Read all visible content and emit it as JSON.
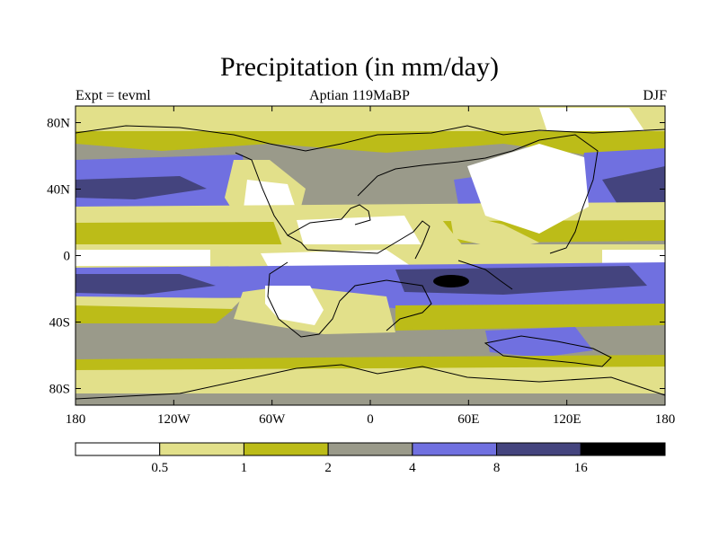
{
  "title": "Precipitation (in mm/day)",
  "subtitle_left": "Expt = tevml",
  "subtitle_center": "Aptian  119MaBP",
  "subtitle_right": "DJF",
  "colors": {
    "level_0": "#ffffff",
    "level_1": "#e2e08a",
    "level_2": "#bcbc18",
    "level_3": "#9a9a8a",
    "level_4": "#7070e0",
    "level_5": "#44447e",
    "level_6": "#000000"
  },
  "chart_data": {
    "type": "map-contour",
    "variable": "Precipitation",
    "units": "mm/day",
    "season": "DJF",
    "lon_range": [
      -180,
      180
    ],
    "lat_range": [
      -90,
      90
    ],
    "x_ticks": [
      "180",
      "120W",
      "60W",
      "0",
      "60E",
      "120E",
      "180"
    ],
    "x_tick_values": [
      -180,
      -120,
      -60,
      0,
      60,
      120,
      180
    ],
    "y_ticks": [
      "80N",
      "40N",
      "0",
      "40S",
      "80S"
    ],
    "y_tick_values": [
      80,
      40,
      0,
      -40,
      -80
    ],
    "legend_levels": [
      "0.5",
      "1",
      "2",
      "4",
      "8",
      "16"
    ],
    "legend_colors": [
      "#ffffff",
      "#e2e08a",
      "#bcbc18",
      "#9a9a8a",
      "#7070e0",
      "#44447e",
      "#000000"
    ]
  }
}
